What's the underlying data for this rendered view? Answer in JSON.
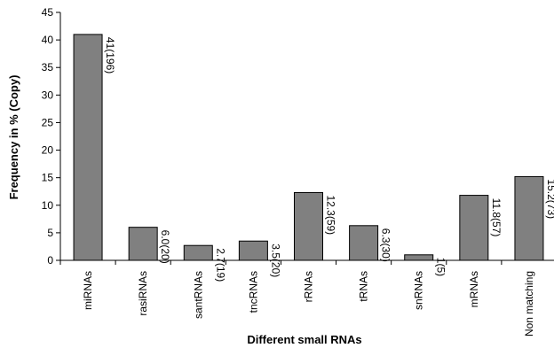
{
  "chart_data": {
    "type": "bar",
    "title": "",
    "xlabel": "Different small RNAs",
    "ylabel": "Frequency in % (Copy)",
    "ylim": [
      0,
      45
    ],
    "yticks": [
      "0",
      "5",
      "10",
      "15",
      "20",
      "25",
      "30",
      "35",
      "40",
      "45"
    ],
    "grid": false,
    "categories": [
      "miRNAs",
      "rasiRNAs",
      "santRNAs",
      "tncRNAs",
      "rRNAs",
      "tRNAs",
      "snRNAs",
      "mRNAs",
      "Non matching"
    ],
    "values": [
      41,
      6.0,
      2.7,
      3.5,
      12.3,
      6.3,
      1,
      11.8,
      15.2
    ],
    "data_labels": [
      "41(196)",
      "6.0(20)",
      "2.7(19)",
      "3.5(20)",
      "12.3(59)",
      "6.3(30)",
      "1(5)",
      "11.8(57)",
      "15.2(73)"
    ],
    "bar_color": "#808080",
    "bar_edge_color": "#000000"
  }
}
